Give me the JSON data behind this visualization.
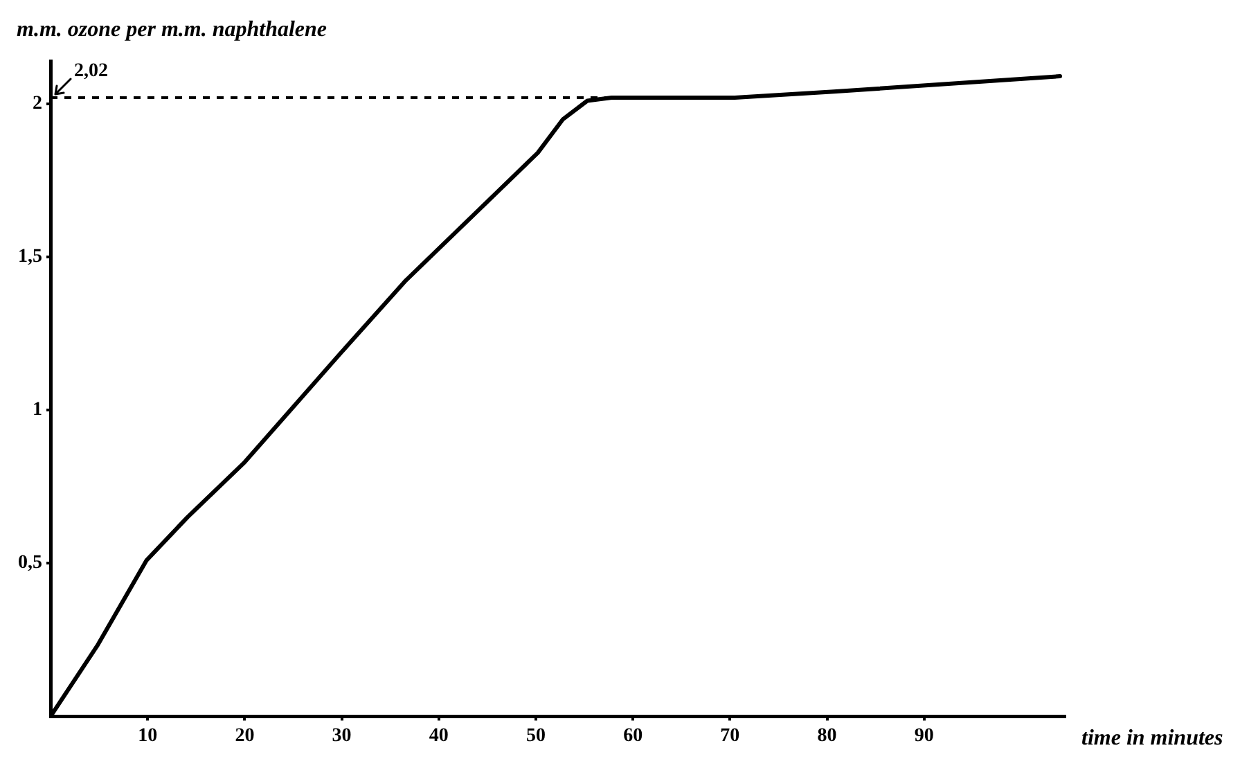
{
  "chart_data": {
    "type": "line",
    "xlabel": "time in minutes",
    "ylabel": "m.m. ozone per m.m. naphthalene",
    "series": [
      {
        "color": "#000000",
        "x": [
          0,
          4.8,
          9.9,
          14.1,
          20,
          30,
          36.5,
          50.2,
          52.8,
          55.3,
          57.8,
          70.5,
          80.7,
          104
        ],
        "values": [
          0,
          0.23,
          0.51,
          0.65,
          0.83,
          1.19,
          1.42,
          1.84,
          1.95,
          2.01,
          2.02,
          2.02,
          2.04,
          2.09
        ]
      }
    ],
    "xlim": [
      0,
      104.5
    ],
    "xticks": [
      10,
      20,
      30,
      40,
      50,
      60,
      70,
      80,
      90
    ],
    "ylim": [
      0,
      2.14
    ],
    "yticks": [
      {
        "value": 0.5,
        "label": "0,5"
      },
      1,
      {
        "value": 1.5,
        "label": "1,5"
      },
      2
    ],
    "ref_lines": [
      {
        "axis": "y",
        "value": 2.02,
        "label": "2,02",
        "line_style": "dashed",
        "color": "#000000"
      }
    ],
    "grid": false,
    "legend": false,
    "marker": "none",
    "line_style": "solid"
  }
}
